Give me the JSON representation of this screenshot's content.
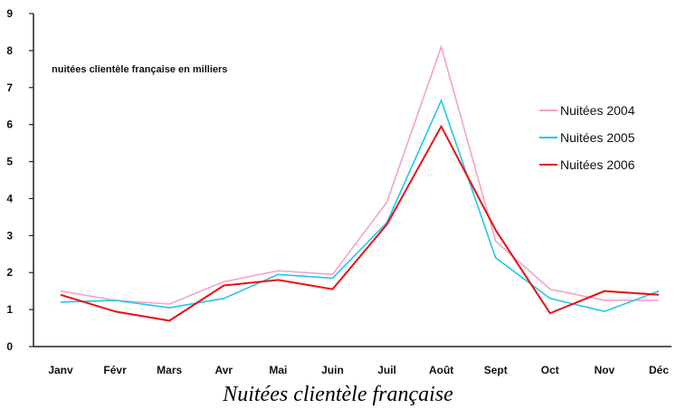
{
  "caption": "Nuitées clientèle française",
  "chart_data": {
    "type": "line",
    "annotation": "nuitées clientèle française en milliers",
    "categories": [
      "Janv",
      "Févr",
      "Mars",
      "Avr",
      "Mai",
      "Juin",
      "Juil",
      "Août",
      "Sept",
      "Oct",
      "Nov",
      "Déc"
    ],
    "ylim": [
      0,
      9
    ],
    "yticks": [
      "0",
      "1",
      "2",
      "3",
      "4",
      "5",
      "6",
      "7",
      "8",
      "9"
    ],
    "grid": false,
    "legend_position": "right",
    "series": [
      {
        "name": "Nuitées 2004",
        "color": "#f4a3cc",
        "values": [
          1.5,
          1.25,
          1.15,
          1.75,
          2.05,
          1.95,
          3.9,
          8.1,
          2.85,
          1.55,
          1.25,
          1.25
        ]
      },
      {
        "name": "Nuitées 2005",
        "color": "#22c6ec",
        "values": [
          1.2,
          1.25,
          1.05,
          1.3,
          1.95,
          1.85,
          3.35,
          6.65,
          2.4,
          1.3,
          0.95,
          1.5
        ]
      },
      {
        "name": "Nuitées 2006",
        "color": "#e81010",
        "values": [
          1.4,
          0.95,
          0.7,
          1.65,
          1.8,
          1.55,
          3.3,
          5.95,
          3.15,
          0.9,
          1.5,
          1.4
        ]
      }
    ]
  }
}
